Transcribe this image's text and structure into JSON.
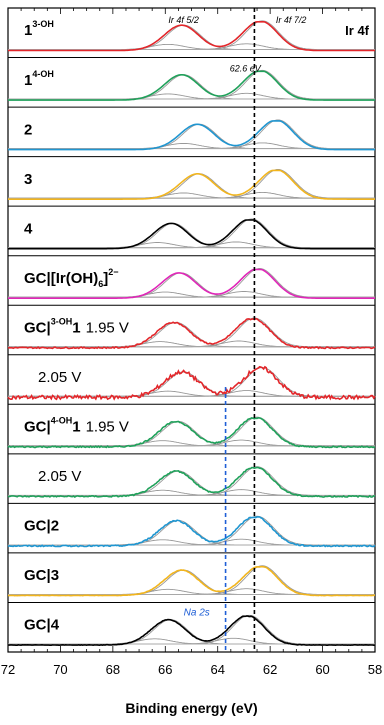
{
  "chart_data": {
    "type": "line",
    "title": "",
    "xlabel": "Binding energy (eV)",
    "xlim": [
      72,
      58
    ],
    "x_reversed": true,
    "x_ticks": [
      72,
      70,
      68,
      66,
      64,
      62,
      60,
      58
    ],
    "x_tick_labels": [
      "72",
      "70",
      "68",
      "66",
      "64",
      "62",
      "60",
      "58"
    ],
    "corner_label": "Ir 4f",
    "annotations": {
      "ir_5_2": "Ir 4f 5/2",
      "ir_7_2": "Ir 4f 7/2",
      "ref_energy": "62.6 eV",
      "na": "Na 2s"
    },
    "reference_lines": [
      {
        "x": 62.6,
        "style": "dashed",
        "color": "#000000"
      },
      {
        "x": 63.7,
        "style": "dashed",
        "color": "#1f5fd6",
        "from_panel": 8
      }
    ],
    "panels": [
      {
        "sup": "3-OH",
        "label": "1",
        "extra": "",
        "color": "#e3262a",
        "peaks": [
          65.3,
          62.3
        ],
        "noise": 0.0
      },
      {
        "sup": "4-OH",
        "label": "1",
        "extra": "",
        "color": "#1fa15a",
        "peaks": [
          65.3,
          62.3
        ],
        "noise": 0.0
      },
      {
        "sup": "",
        "label": "2",
        "extra": "",
        "color": "#1f96d1",
        "peaks": [
          64.7,
          61.7
        ],
        "noise": 0.0
      },
      {
        "sup": "",
        "label": "3",
        "extra": "",
        "color": "#f2b51d",
        "peaks": [
          64.7,
          61.7
        ],
        "noise": 0.0
      },
      {
        "sup": "",
        "label": "4",
        "extra": "",
        "color": "#000000",
        "peaks": [
          65.7,
          62.7
        ],
        "noise": 0.0
      },
      {
        "sup": "2−",
        "label": "GC|[Ir(OH)",
        "label_sub": "6",
        "label_close": "]",
        "extra": "",
        "color": "#e026b8",
        "peaks": [
          65.4,
          62.4
        ],
        "noise": 0.0
      },
      {
        "sup": "3-OH",
        "label": "GC|",
        "label_after": "1",
        "extra": "1.95 V",
        "color": "#e3262a",
        "peaks": [
          65.6,
          62.6
        ],
        "noise": 0.03
      },
      {
        "sup": "",
        "label": "",
        "extra": "2.05 V",
        "color": "#e3262a",
        "peaks": [
          65.3,
          62.3
        ],
        "noise": 0.09
      },
      {
        "sup": "4-OH",
        "label": "GC|",
        "label_after": "1",
        "extra": "1.95 V",
        "color": "#1fa15a",
        "peaks": [
          65.5,
          62.5
        ],
        "noise": 0.03
      },
      {
        "sup": "",
        "label": "",
        "extra": "2.05 V",
        "color": "#1fa15a",
        "peaks": [
          65.5,
          62.5
        ],
        "noise": 0.03
      },
      {
        "sup": "",
        "label": "GC|2",
        "extra": "",
        "color": "#1f96d1",
        "peaks": [
          65.5,
          62.5
        ],
        "noise": 0.03
      },
      {
        "sup": "",
        "label": "GC|3",
        "extra": "",
        "color": "#f2b51d",
        "peaks": [
          65.3,
          62.3
        ],
        "noise": 0.01
      },
      {
        "sup": "",
        "label": "GC|4",
        "extra": "",
        "color": "#000000",
        "peaks": [
          65.8,
          62.8
        ],
        "noise": 0.01
      }
    ]
  }
}
